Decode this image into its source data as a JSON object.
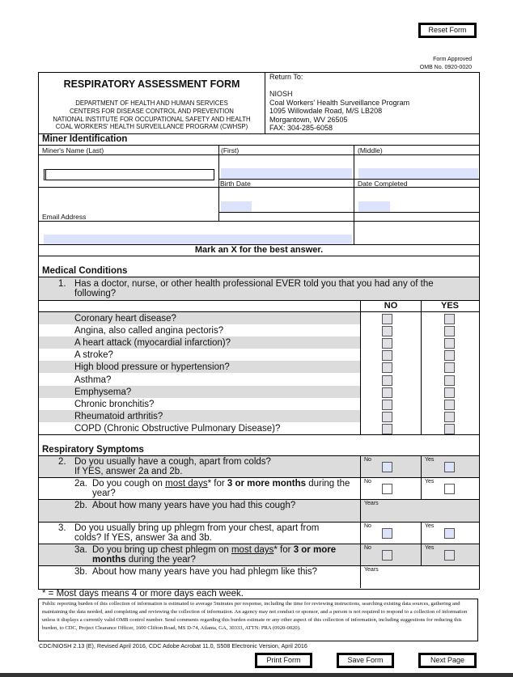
{
  "buttons": {
    "reset": "Reset Form",
    "print": "Print Form",
    "save": "Save Form",
    "next": "Next Page"
  },
  "approval": {
    "line1": "Form Approved",
    "line2": "OMB No. 0920-0020"
  },
  "header": {
    "title": "RESPIRATORY ASSESSMENT FORM",
    "agency": [
      "DEPARTMENT OF HEALTH AND HUMAN SERVICES",
      "CENTERS FOR DISEASE CONTROL AND PREVENTION",
      "NATIONAL INSTITUTE FOR OCCUPATIONAL SAFETY AND HEALTH",
      "COAL WORKERS' HEALTH SURVEILLANCE PROGRAM (CWHSP)"
    ],
    "return_to": "Return To:",
    "address": [
      "NIOSH",
      "Coal Workers' Health Surveillance Program",
      "1095 Willowdale Road, M/S LB208",
      "Morgantown, WV 26505",
      "FAX: 304-285-6058"
    ]
  },
  "miner": {
    "section": "Miner Identification",
    "last": "Miner's Name (Last)",
    "first": "(First)",
    "middle": "(Middle)",
    "birth": "Birth Date",
    "date_completed": "Date Completed",
    "email": "Email Address"
  },
  "instruction": "Mark an X for the best answer.",
  "medical": {
    "section": "Medical Conditions",
    "q1_num": "1.",
    "q1": "Has a doctor, nurse, or other health professional EVER told you that you had any of the following?",
    "no": "NO",
    "yes": "YES",
    "conditions": [
      "Coronary heart disease?",
      "Angina, also called angina pectoris?",
      "A heart attack (myocardial infarction)?",
      "A stroke?",
      "High blood pressure or hypertension?",
      "Asthma?",
      "Emphysema?",
      "Chronic bronchitis?",
      "Rheumatoid arthritis?",
      "COPD (Chronic Obstructive Pulmonary Disease)?"
    ]
  },
  "resp": {
    "section": "Respiratory Symptoms",
    "no": "No",
    "yes": "Yes",
    "years": "Years",
    "q2": {
      "num": "2.",
      "line1": "Do you usually have a cough, apart from colds?",
      "line2": "If YES, answer 2a and 2b."
    },
    "q2a": {
      "num": "2a.",
      "pre": "Do you cough on ",
      "u": "most days",
      "post": "* for ",
      "b": "3 or more months",
      "post2": " during the year?"
    },
    "q2b": {
      "num": "2b.",
      "text": "About how many years have you had this cough?"
    },
    "q3": {
      "num": "3.",
      "text": "Do you usually bring up phlegm from your chest, apart from colds?  If YES, answer 3a and 3b."
    },
    "q3a": {
      "num": "3a.",
      "pre": "Do you bring up chest phlegm on ",
      "u": "most days",
      "post": "* for ",
      "b": "3 or more months",
      "post2": " during the year?"
    },
    "q3b": {
      "num": "3b.",
      "text": "About how many years have you had phlegm like this?"
    }
  },
  "footnote": "* = Most days means 4 or more days each week.",
  "burden": "Public reporting burden of this collection of information is estimated to average 5minutes per response, including the time for reviewing instructions, searching existing data sources, gathering and maintaining the data needed, and completing and reviewing the collection of information. An agency may not conduct or sponsor, and a person is not required to respond to a collection of information unless it displays a currently valid OMB control number. Send comments regarding this burden estimate or any other aspect of this collection of information, including suggestions for reducing this burden, to CDC, Project Clearance Officer, 1600 Clifton Road, MS D-74, Atlanta, GA, 30333, ATTN: PRA (0920-0020).",
  "version": "CDC/NIOSH 2.13 (E), Revised April 2016, CDC Adobe Acrobat 11.0, S508 Electronic Version, April 2016"
}
